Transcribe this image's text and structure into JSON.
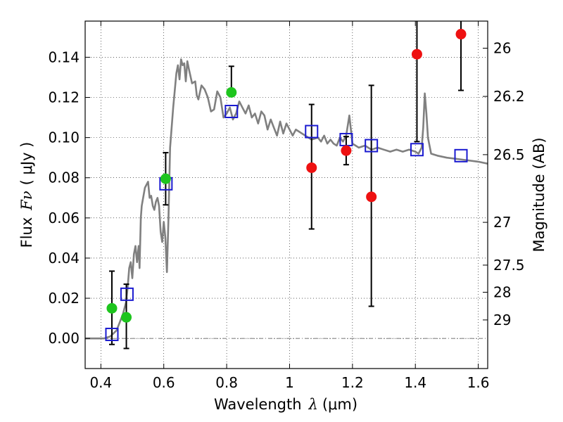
{
  "chart_data": {
    "type": "scatter",
    "title": "",
    "xlabel_prefix": "Wavelength",
    "xlabel_symbol": "λ",
    "xlabel_unit": "(μm)",
    "ylabel_prefix": "Flux",
    "ylabel_symbol": "Fν",
    "ylabel_unit": "( μJy )",
    "y2label": "Magnitude (AB)",
    "xlim": [
      0.35,
      1.63
    ],
    "ylim": [
      -0.015,
      0.158
    ],
    "grid": true,
    "x_ticks": [
      0.4,
      0.6,
      0.8,
      1.0,
      1.2,
      1.4,
      1.6
    ],
    "x_tick_labels": [
      "0.4",
      "0.6",
      "0.8",
      "1",
      "1.2",
      "1.4",
      "1.6"
    ],
    "y_ticks": [
      0.0,
      0.02,
      0.04,
      0.06,
      0.08,
      0.1,
      0.12,
      0.14
    ],
    "y_tick_labels": [
      "0.00",
      "0.02",
      "0.04",
      "0.06",
      "0.08",
      "0.10",
      "0.12",
      "0.14"
    ],
    "y2_ticks": [
      {
        "flux": 0.1445,
        "label": "26"
      },
      {
        "flux": 0.1205,
        "label": "26.2"
      },
      {
        "flux": 0.0915,
        "label": "26.5"
      },
      {
        "flux": 0.0578,
        "label": "27"
      },
      {
        "flux": 0.0365,
        "label": "27.5"
      },
      {
        "flux": 0.023,
        "label": "28"
      },
      {
        "flux": 0.0092,
        "label": "29"
      }
    ],
    "colors": {
      "sed": "#808080",
      "green": "#1ec51e",
      "red": "#ee1111",
      "model": "#1a1ad0",
      "errorbar": "#000000"
    },
    "series": [
      {
        "name": "model SED",
        "kind": "line",
        "x": [
          0.35,
          0.38,
          0.41,
          0.43,
          0.45,
          0.47,
          0.48,
          0.485,
          0.49,
          0.495,
          0.5,
          0.505,
          0.51,
          0.515,
          0.52,
          0.523,
          0.527,
          0.53,
          0.54,
          0.55,
          0.555,
          0.56,
          0.565,
          0.57,
          0.575,
          0.58,
          0.585,
          0.59,
          0.595,
          0.6,
          0.605,
          0.61,
          0.615,
          0.62,
          0.63,
          0.64,
          0.645,
          0.65,
          0.655,
          0.66,
          0.665,
          0.67,
          0.675,
          0.68,
          0.69,
          0.7,
          0.705,
          0.71,
          0.72,
          0.73,
          0.74,
          0.75,
          0.76,
          0.77,
          0.78,
          0.79,
          0.8,
          0.81,
          0.82,
          0.83,
          0.84,
          0.85,
          0.86,
          0.87,
          0.88,
          0.89,
          0.9,
          0.91,
          0.92,
          0.93,
          0.94,
          0.95,
          0.96,
          0.97,
          0.98,
          0.99,
          1.0,
          1.01,
          1.02,
          1.03,
          1.05,
          1.07,
          1.09,
          1.1,
          1.11,
          1.12,
          1.13,
          1.14,
          1.15,
          1.16,
          1.17,
          1.18,
          1.19,
          1.2,
          1.21,
          1.22,
          1.24,
          1.26,
          1.28,
          1.3,
          1.32,
          1.34,
          1.36,
          1.38,
          1.4,
          1.41,
          1.42,
          1.425,
          1.43,
          1.435,
          1.44,
          1.45,
          1.47,
          1.5,
          1.55,
          1.6,
          1.63
        ],
        "y": [
          0.0,
          0.0,
          0.0,
          0.001,
          0.004,
          0.012,
          0.018,
          0.025,
          0.035,
          0.038,
          0.03,
          0.042,
          0.046,
          0.038,
          0.046,
          0.035,
          0.06,
          0.066,
          0.075,
          0.078,
          0.07,
          0.071,
          0.066,
          0.064,
          0.068,
          0.07,
          0.066,
          0.053,
          0.048,
          0.058,
          0.05,
          0.033,
          0.06,
          0.095,
          0.115,
          0.132,
          0.136,
          0.129,
          0.139,
          0.136,
          0.137,
          0.128,
          0.138,
          0.134,
          0.127,
          0.128,
          0.121,
          0.119,
          0.126,
          0.124,
          0.12,
          0.113,
          0.114,
          0.123,
          0.12,
          0.11,
          0.112,
          0.115,
          0.109,
          0.112,
          0.118,
          0.115,
          0.112,
          0.116,
          0.11,
          0.112,
          0.107,
          0.113,
          0.111,
          0.104,
          0.109,
          0.105,
          0.101,
          0.108,
          0.102,
          0.107,
          0.104,
          0.101,
          0.104,
          0.103,
          0.101,
          0.099,
          0.1,
          0.098,
          0.101,
          0.097,
          0.099,
          0.097,
          0.096,
          0.1,
          0.098,
          0.101,
          0.111,
          0.097,
          0.096,
          0.095,
          0.096,
          0.094,
          0.095,
          0.094,
          0.093,
          0.094,
          0.093,
          0.094,
          0.093,
          0.092,
          0.095,
          0.105,
          0.122,
          0.112,
          0.1,
          0.092,
          0.091,
          0.09,
          0.089,
          0.088,
          0.087
        ]
      },
      {
        "name": "model photometry",
        "kind": "square",
        "x": [
          0.435,
          0.483,
          0.607,
          0.815,
          1.07,
          1.18,
          1.26,
          1.405,
          1.545
        ],
        "y": [
          0.002,
          0.022,
          0.077,
          0.113,
          0.103,
          0.099,
          0.096,
          0.094,
          0.091
        ]
      },
      {
        "name": "observed (green)",
        "kind": "circle",
        "color_key": "green",
        "x": [
          0.435,
          0.481,
          0.606,
          0.815
        ],
        "y": [
          0.015,
          0.0105,
          0.0795,
          0.1225
        ],
        "yerr_low": [
          0.018,
          0.0155,
          0.013,
          0.0
        ],
        "yerr_high": [
          0.0185,
          0.0165,
          0.013,
          0.013
        ]
      },
      {
        "name": "observed (red)",
        "kind": "circle",
        "color_key": "red",
        "x": [
          1.07,
          1.18,
          1.26,
          1.405,
          1.545
        ],
        "y": [
          0.085,
          0.0935,
          0.0705,
          0.1415,
          0.1515
        ],
        "yerr_low": [
          0.0305,
          0.007,
          0.0545,
          0.0435,
          0.028
        ],
        "yerr_high": [
          0.0315,
          0.007,
          0.0555,
          0.018,
          0.008
        ]
      }
    ]
  }
}
